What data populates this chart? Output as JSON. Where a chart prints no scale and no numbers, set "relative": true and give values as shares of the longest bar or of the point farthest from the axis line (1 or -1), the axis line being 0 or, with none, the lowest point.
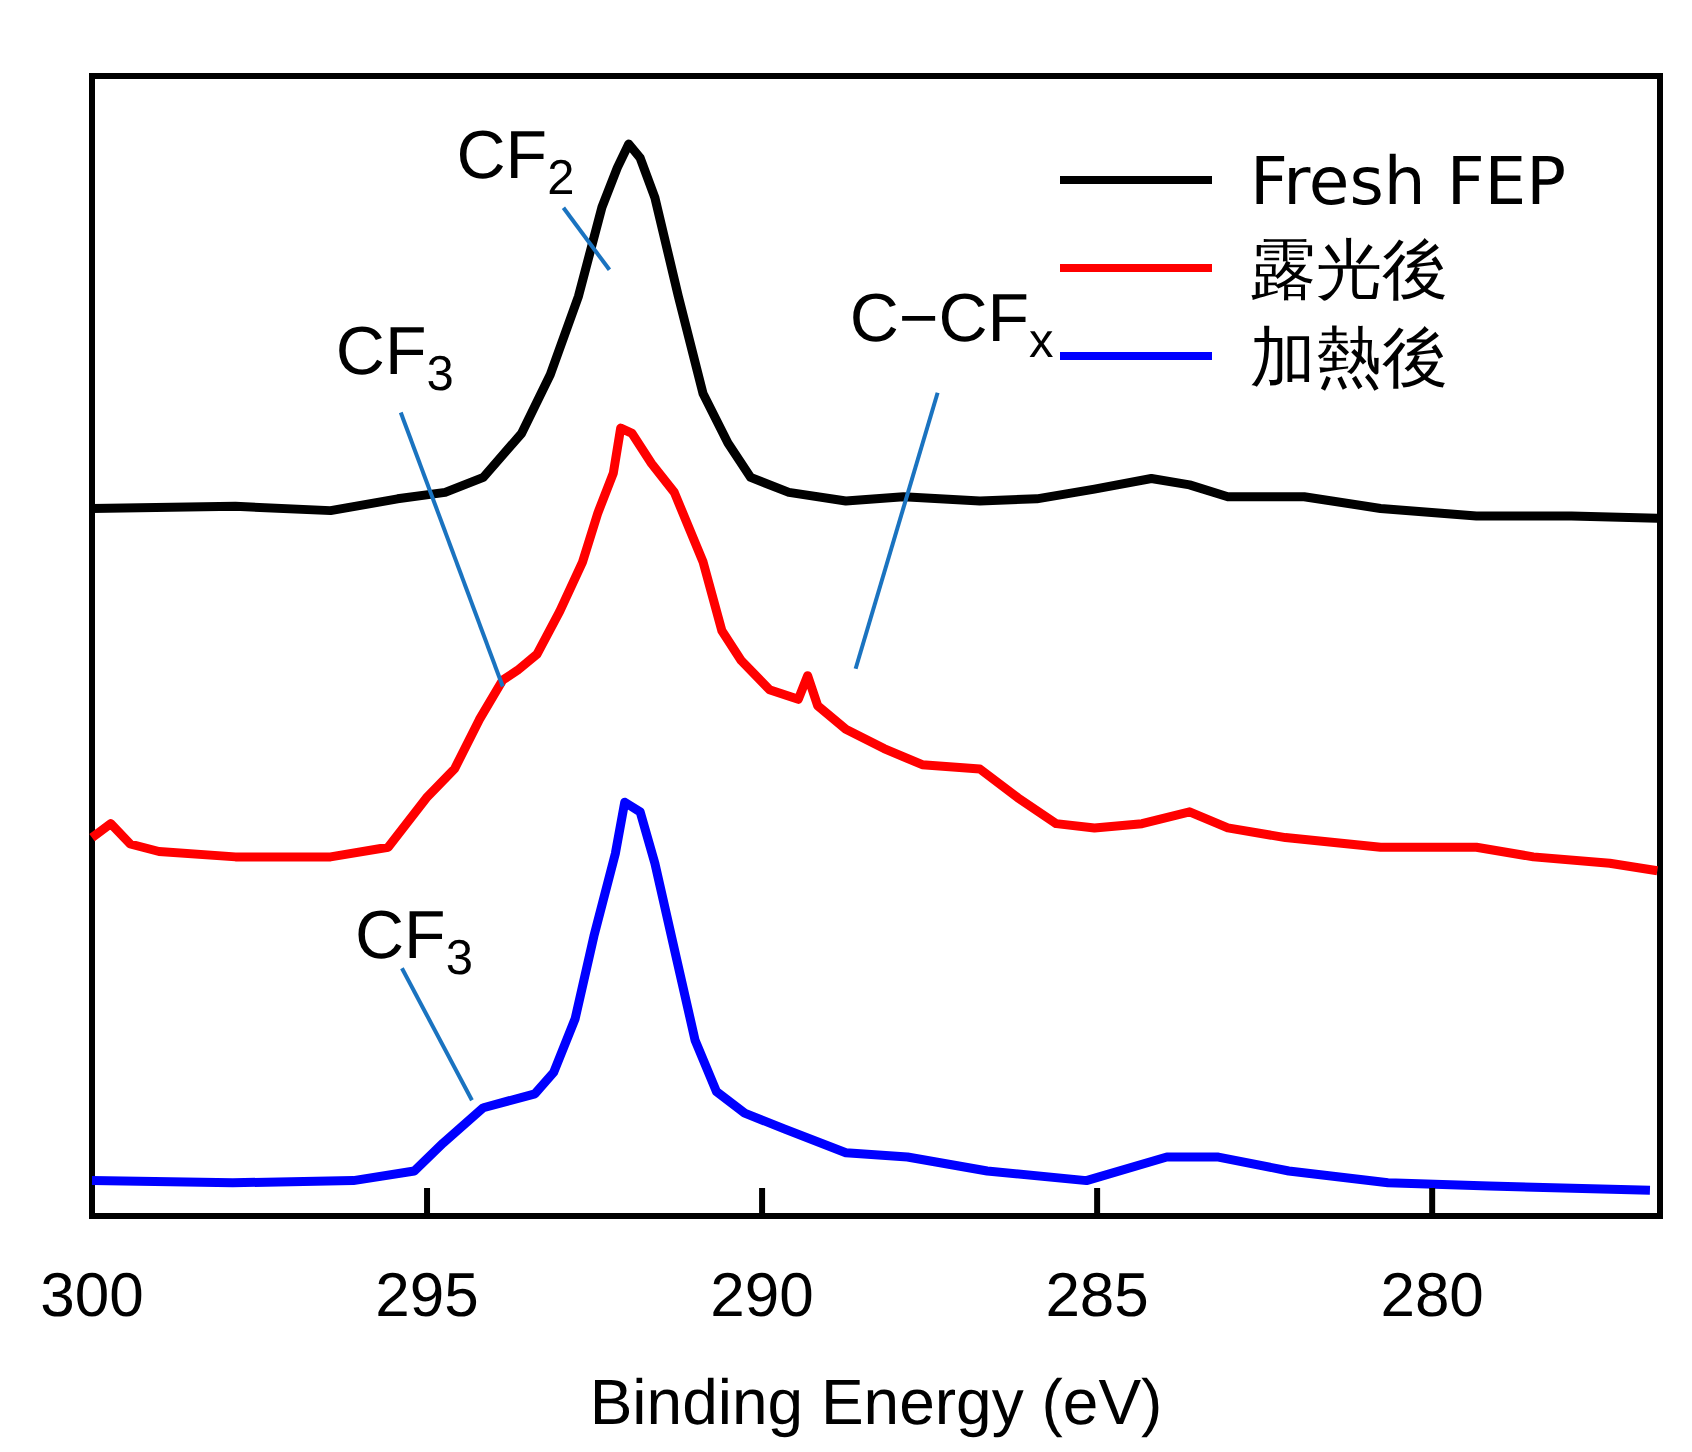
{
  "chart_data": {
    "type": "line",
    "relative": true,
    "xlabel": "Binding Energy (eV)",
    "xlim": [
      300,
      276.6
    ],
    "xticks": [
      300,
      295,
      290,
      285,
      280
    ],
    "legend": "top right",
    "grid": false,
    "marker": "none",
    "line_style": "solid",
    "series": [
      {
        "name": "Fresh FEP",
        "color": "#000000",
        "x": [
          300.0,
          297.86,
          296.44,
          295.44,
          294.73,
          294.16,
          293.59,
          293.16,
          292.74,
          292.39,
          292.16,
          291.99,
          291.82,
          291.6,
          291.25,
          290.88,
          290.51,
          290.17,
          289.6,
          288.75,
          287.89,
          286.75,
          285.9,
          285.04,
          284.19,
          283.62,
          283.05,
          281.91,
          280.77,
          279.34,
          277.92,
          276.64
        ],
        "values": [
          0.66,
          0.662,
          0.658,
          0.669,
          0.675,
          0.689,
          0.73,
          0.785,
          0.858,
          0.941,
          0.978,
          1.0,
          0.987,
          0.95,
          0.858,
          0.767,
          0.721,
          0.689,
          0.675,
          0.667,
          0.671,
          0.667,
          0.669,
          0.678,
          0.688,
          0.682,
          0.671,
          0.671,
          0.66,
          0.653,
          0.653,
          0.651
        ]
      },
      {
        "name": "露光後",
        "color": "#ff0000",
        "x": [
          300.0,
          299.72,
          299.43,
          299.0,
          297.86,
          296.44,
          295.58,
          295.01,
          294.59,
          294.22,
          293.87,
          293.65,
          293.36,
          293.02,
          292.68,
          292.45,
          292.22,
          292.11,
          291.94,
          291.65,
          291.31,
          290.88,
          290.6,
          290.31,
          289.89,
          289.46,
          289.32,
          289.17,
          288.75,
          288.18,
          287.61,
          286.75,
          286.18,
          285.61,
          285.04,
          284.33,
          283.62,
          283.05,
          282.19,
          280.77,
          279.34,
          278.49,
          277.35,
          276.64
        ],
        "values": [
          0.353,
          0.366,
          0.347,
          0.34,
          0.335,
          0.335,
          0.344,
          0.39,
          0.417,
          0.463,
          0.5,
          0.509,
          0.524,
          0.564,
          0.61,
          0.656,
          0.693,
          0.735,
          0.73,
          0.702,
          0.675,
          0.61,
          0.546,
          0.518,
          0.491,
          0.482,
          0.504,
          0.476,
          0.454,
          0.436,
          0.421,
          0.417,
          0.39,
          0.366,
          0.362,
          0.366,
          0.377,
          0.362,
          0.353,
          0.344,
          0.344,
          0.335,
          0.329,
          0.322
        ]
      },
      {
        "name": "加熱後",
        "color": "#0000ff",
        "x": [
          300.0,
          297.9,
          296.1,
          295.19,
          294.76,
          294.16,
          293.39,
          293.11,
          292.79,
          292.51,
          292.19,
          292.05,
          291.82,
          291.6,
          291.28,
          291.0,
          290.68,
          290.26,
          289.66,
          288.75,
          287.83,
          286.64,
          285.16,
          283.96,
          283.19,
          282.14,
          280.66,
          279.15,
          276.75
        ],
        "values": [
          0.033,
          0.031,
          0.033,
          0.042,
          0.068,
          0.101,
          0.114,
          0.134,
          0.184,
          0.261,
          0.338,
          0.386,
          0.377,
          0.329,
          0.241,
          0.164,
          0.116,
          0.096,
          0.081,
          0.059,
          0.055,
          0.042,
          0.033,
          0.055,
          0.055,
          0.042,
          0.031,
          0.028,
          0.024
        ]
      }
    ],
    "annotations": [
      "CF$_{2}$",
      {
        "text": "CF$_{3}$",
        "x": 293.87,
        "y": 0.494
      },
      "C−CF$_{x}$",
      {
        "text": "CF$_{3}$",
        "x": 294.33,
        "y": 0.108
      }
    ]
  }
}
